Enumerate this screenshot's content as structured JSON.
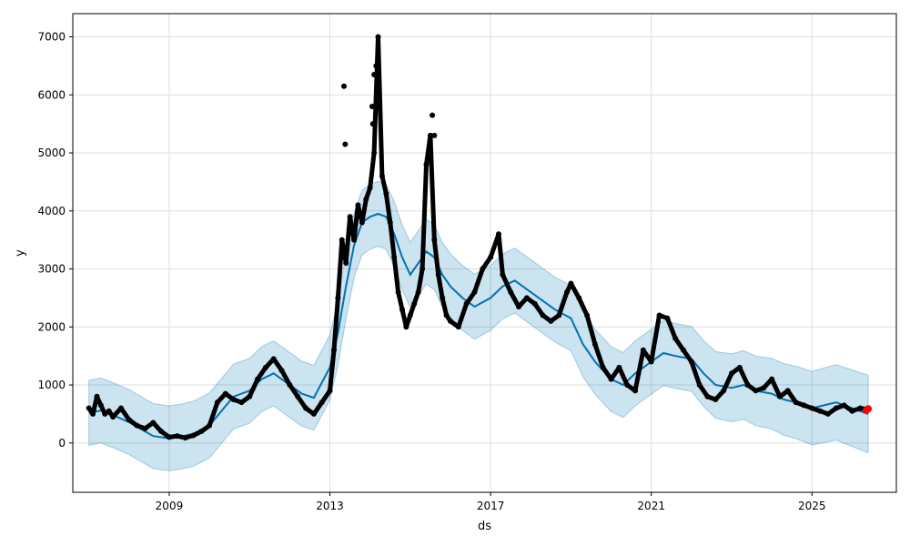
{
  "chart_data": {
    "type": "scatter",
    "title": "",
    "xlabel": "ds",
    "ylabel": "y",
    "xlim": [
      2006.6,
      2027.1
    ],
    "ylim": [
      -850,
      7400
    ],
    "x_ticks": [
      2009,
      2013,
      2017,
      2021,
      2025
    ],
    "y_ticks": [
      0,
      1000,
      2000,
      3000,
      4000,
      5000,
      6000,
      7000
    ],
    "grid": true,
    "legend": "none",
    "colors": {
      "observed": "#000000",
      "forecast": "#0072b2",
      "interval": "#0072b2",
      "interval_opacity": 0.2,
      "grid": "#dddddd",
      "highlight": "#ff0000"
    },
    "series": [
      {
        "role": "forecast_line",
        "x": [
          2007.0,
          2007.3,
          2007.6,
          2008.0,
          2008.3,
          2008.6,
          2009.0,
          2009.3,
          2009.6,
          2010.0,
          2010.3,
          2010.6,
          2011.0,
          2011.3,
          2011.6,
          2012.0,
          2012.3,
          2012.6,
          2013.0,
          2013.2,
          2013.4,
          2013.6,
          2013.8,
          2014.0,
          2014.2,
          2014.4,
          2014.6,
          2014.8,
          2015.0,
          2015.2,
          2015.4,
          2015.6,
          2015.8,
          2016.0,
          2016.3,
          2016.6,
          2017.0,
          2017.3,
          2017.6,
          2018.0,
          2018.3,
          2018.6,
          2019.0,
          2019.3,
          2019.6,
          2020.0,
          2020.3,
          2020.6,
          2021.0,
          2021.3,
          2021.6,
          2022.0,
          2022.3,
          2022.6,
          2023.0,
          2023.3,
          2023.6,
          2024.0,
          2024.3,
          2024.6,
          2025.0,
          2025.3,
          2025.6,
          2026.0,
          2026.4
        ],
        "y": [
          520,
          560,
          480,
          360,
          240,
          120,
          80,
          110,
          160,
          300,
          550,
          800,
          900,
          1100,
          1200,
          1000,
          850,
          780,
          1300,
          1900,
          2700,
          3400,
          3800,
          3900,
          3950,
          3900,
          3600,
          3200,
          2900,
          3100,
          3300,
          3200,
          2900,
          2700,
          2500,
          2350,
          2500,
          2700,
          2800,
          2600,
          2450,
          2300,
          2150,
          1700,
          1400,
          1100,
          1000,
          1200,
          1400,
          1550,
          1500,
          1450,
          1200,
          1000,
          950,
          1000,
          900,
          850,
          750,
          700,
          600,
          650,
          700,
          600,
          500
        ]
      },
      {
        "role": "observed",
        "x": [
          2007.0,
          2007.1,
          2007.2,
          2007.3,
          2007.4,
          2007.5,
          2007.6,
          2007.8,
          2008.0,
          2008.2,
          2008.4,
          2008.6,
          2008.8,
          2009.0,
          2009.2,
          2009.4,
          2009.6,
          2009.8,
          2010.0,
          2010.2,
          2010.4,
          2010.6,
          2010.8,
          2011.0,
          2011.2,
          2011.4,
          2011.6,
          2011.8,
          2012.0,
          2012.2,
          2012.4,
          2012.6,
          2012.8,
          2013.0,
          2013.1,
          2013.2,
          2013.3,
          2013.4,
          2013.5,
          2013.6,
          2013.7,
          2013.8,
          2013.9,
          2014.0,
          2014.1,
          2014.2,
          2014.3,
          2014.4,
          2014.5,
          2014.6,
          2014.7,
          2014.8,
          2014.9,
          2015.0,
          2015.1,
          2015.2,
          2015.3,
          2015.4,
          2015.5,
          2015.6,
          2015.7,
          2015.8,
          2015.9,
          2016.0,
          2016.2,
          2016.4,
          2016.6,
          2016.8,
          2017.0,
          2017.2,
          2017.3,
          2017.5,
          2017.7,
          2017.9,
          2018.1,
          2018.3,
          2018.5,
          2018.7,
          2018.9,
          2019.0,
          2019.2,
          2019.4,
          2019.6,
          2019.8,
          2020.0,
          2020.2,
          2020.4,
          2020.6,
          2020.8,
          2021.0,
          2021.2,
          2021.4,
          2021.6,
          2021.8,
          2022.0,
          2022.2,
          2022.4,
          2022.6,
          2022.8,
          2023.0,
          2023.2,
          2023.4,
          2023.6,
          2023.8,
          2024.0,
          2024.2,
          2024.4,
          2024.6,
          2024.8,
          2025.0,
          2025.2,
          2025.4,
          2025.6,
          2025.8,
          2026.0,
          2026.2,
          2026.4
        ],
        "y": [
          600,
          500,
          800,
          650,
          500,
          550,
          450,
          600,
          400,
          300,
          250,
          350,
          200,
          100,
          120,
          90,
          130,
          200,
          300,
          700,
          850,
          750,
          700,
          800,
          1100,
          1300,
          1450,
          1250,
          1000,
          800,
          600,
          500,
          700,
          900,
          1600,
          2500,
          3500,
          3100,
          3900,
          3500,
          4100,
          3800,
          4200,
          4400,
          5000,
          7000,
          4600,
          4300,
          3800,
          3200,
          2600,
          2300,
          2000,
          2200,
          2400,
          2600,
          3000,
          4800,
          5300,
          3500,
          2900,
          2500,
          2200,
          2100,
          2000,
          2400,
          2600,
          3000,
          3200,
          3600,
          2900,
          2600,
          2350,
          2500,
          2400,
          2200,
          2100,
          2200,
          2600,
          2750,
          2500,
          2200,
          1700,
          1300,
          1100,
          1300,
          1000,
          900,
          1600,
          1400,
          2200,
          2150,
          1800,
          1600,
          1400,
          1000,
          800,
          750,
          900,
          1200,
          1300,
          1000,
          900,
          950,
          1100,
          800,
          900,
          700,
          650,
          600,
          550,
          500,
          600,
          650,
          550,
          600,
          580
        ]
      },
      {
        "role": "observed_outliers",
        "x": [
          2013.35,
          2013.38,
          2014.05,
          2014.07,
          2014.1,
          2014.15,
          2015.55,
          2015.6
        ],
        "y": [
          6150,
          5150,
          5800,
          5500,
          6350,
          6500,
          5650,
          5300
        ]
      },
      {
        "role": "forecast_points",
        "x": [
          2026.35,
          2026.4
        ],
        "y": [
          560,
          590
        ]
      }
    ]
  }
}
